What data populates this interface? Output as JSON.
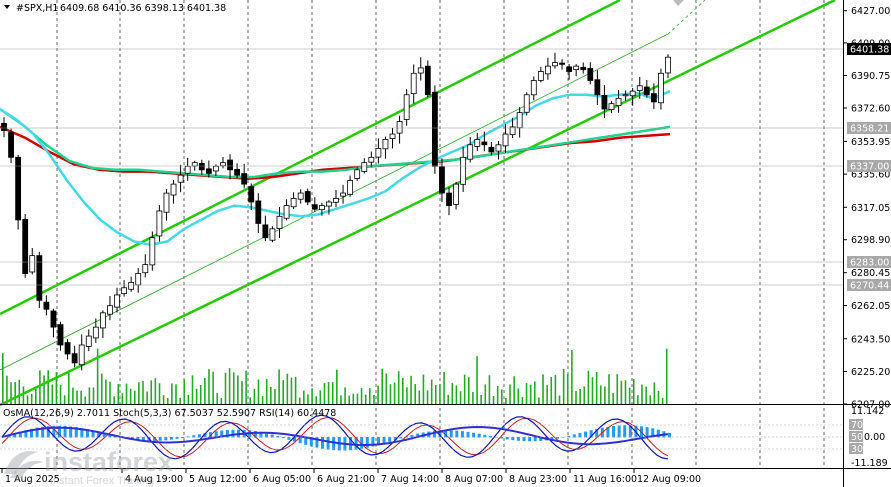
{
  "header": {
    "symbol": "#SPX,H1",
    "ohlc": "6409.68 6410.36 6398.13 6401.38"
  },
  "indicator": {
    "label": "OsMA(12,26,9) 2.7011  Stoch(5,3,3) 67.5037 52.5907  RSI(14) 60.4478"
  },
  "watermark": {
    "brand": "instaforex",
    "tagline": "Instant Forex Trading"
  },
  "colors": {
    "background": "#ffffff",
    "grid": "#000000",
    "ema200": "#d40000",
    "ema144": "#1fd38c",
    "ema50": "#44d9e6",
    "channel": "#22cc00",
    "candle": "#000000",
    "volume": "#22aa22",
    "osma": "#2299ff",
    "stoch_main": "#0a14b4",
    "stoch_signal": "#c02020",
    "rsi": "#3030d0"
  },
  "chart_data": {
    "type": "candlestick",
    "timeframe": "H1",
    "ylim": [
      6207,
      6433
    ],
    "price_ticks": [
      6427.0,
      6409.0,
      6390.75,
      6372.6,
      6353.95,
      6335.6,
      6317.05,
      6298.9,
      6280.45,
      6262.05,
      6243.5,
      6225.2,
      6207.0
    ],
    "current_price": "6401.38",
    "level_tags": [
      "6358.21",
      "6337.00",
      "6283.00",
      "6270.44"
    ],
    "time_labels": [
      "1 Aug 2025",
      "4 Aug 19:00",
      "5 Aug 12:00",
      "6 Aug 05:00",
      "6 Aug 21:00",
      "7 Aug 14:00",
      "8 Aug 07:00",
      "8 Aug 23:00",
      "11 Aug 16:00",
      "12 Aug 09:00"
    ],
    "close": [
      6360,
      6345,
      6310,
      6280,
      6290,
      6265,
      6260,
      6250,
      6240,
      6235,
      6230,
      6240,
      6245,
      6250,
      6258,
      6262,
      6268,
      6272,
      6275,
      6280,
      6285,
      6300,
      6315,
      6325,
      6330,
      6335,
      6340,
      6342,
      6338,
      6336,
      6340,
      6342,
      6338,
      6335,
      6330,
      6320,
      6308,
      6300,
      6305,
      6312,
      6318,
      6322,
      6325,
      6320,
      6316,
      6318,
      6320,
      6322,
      6325,
      6332,
      6338,
      6342,
      6345,
      6350,
      6355,
      6358,
      6365,
      6380,
      6392,
      6395,
      6380,
      6340,
      6325,
      6318,
      6330,
      6345,
      6352,
      6355,
      6352,
      6348,
      6352,
      6358,
      6362,
      6370,
      6380,
      6388,
      6393,
      6396,
      6398,
      6397,
      6393,
      6396,
      6394,
      6388,
      6380,
      6372,
      6375,
      6378,
      6380,
      6382,
      6385,
      6380,
      6376,
      6392,
      6401
    ],
    "ema50": [
      6372,
      6366,
      6358,
      6346,
      6332,
      6320,
      6310,
      6303,
      6298,
      6296,
      6298,
      6305,
      6310,
      6315,
      6318,
      6317,
      6315,
      6313,
      6312,
      6313,
      6316,
      6319,
      6322,
      6326,
      6333,
      6339,
      6344,
      6348,
      6352,
      6358,
      6363,
      6368,
      6374,
      6378,
      6380,
      6380,
      6379,
      6380,
      6381,
      6378,
      6382
    ],
    "ema144": [
      6372,
      6363,
      6352,
      6343,
      6339,
      6338,
      6338,
      6337,
      6336,
      6335,
      6334,
      6334,
      6336,
      6337,
      6337,
      6338,
      6340,
      6341,
      6342,
      6343,
      6344,
      6346,
      6348,
      6350,
      6352,
      6354,
      6356,
      6358,
      6360,
      6362
    ],
    "ema200": [
      6362,
      6356,
      6348,
      6341,
      6338,
      6337,
      6337,
      6336,
      6335,
      6334,
      6333,
      6334,
      6336,
      6338,
      6339,
      6340,
      6341,
      6342,
      6343,
      6345,
      6347,
      6349,
      6351,
      6353,
      6354,
      6356,
      6357,
      6358
    ],
    "indicator_levels": [
      "11.142",
      "70",
      "50",
      "0.00",
      "30",
      "-11.189"
    ]
  }
}
